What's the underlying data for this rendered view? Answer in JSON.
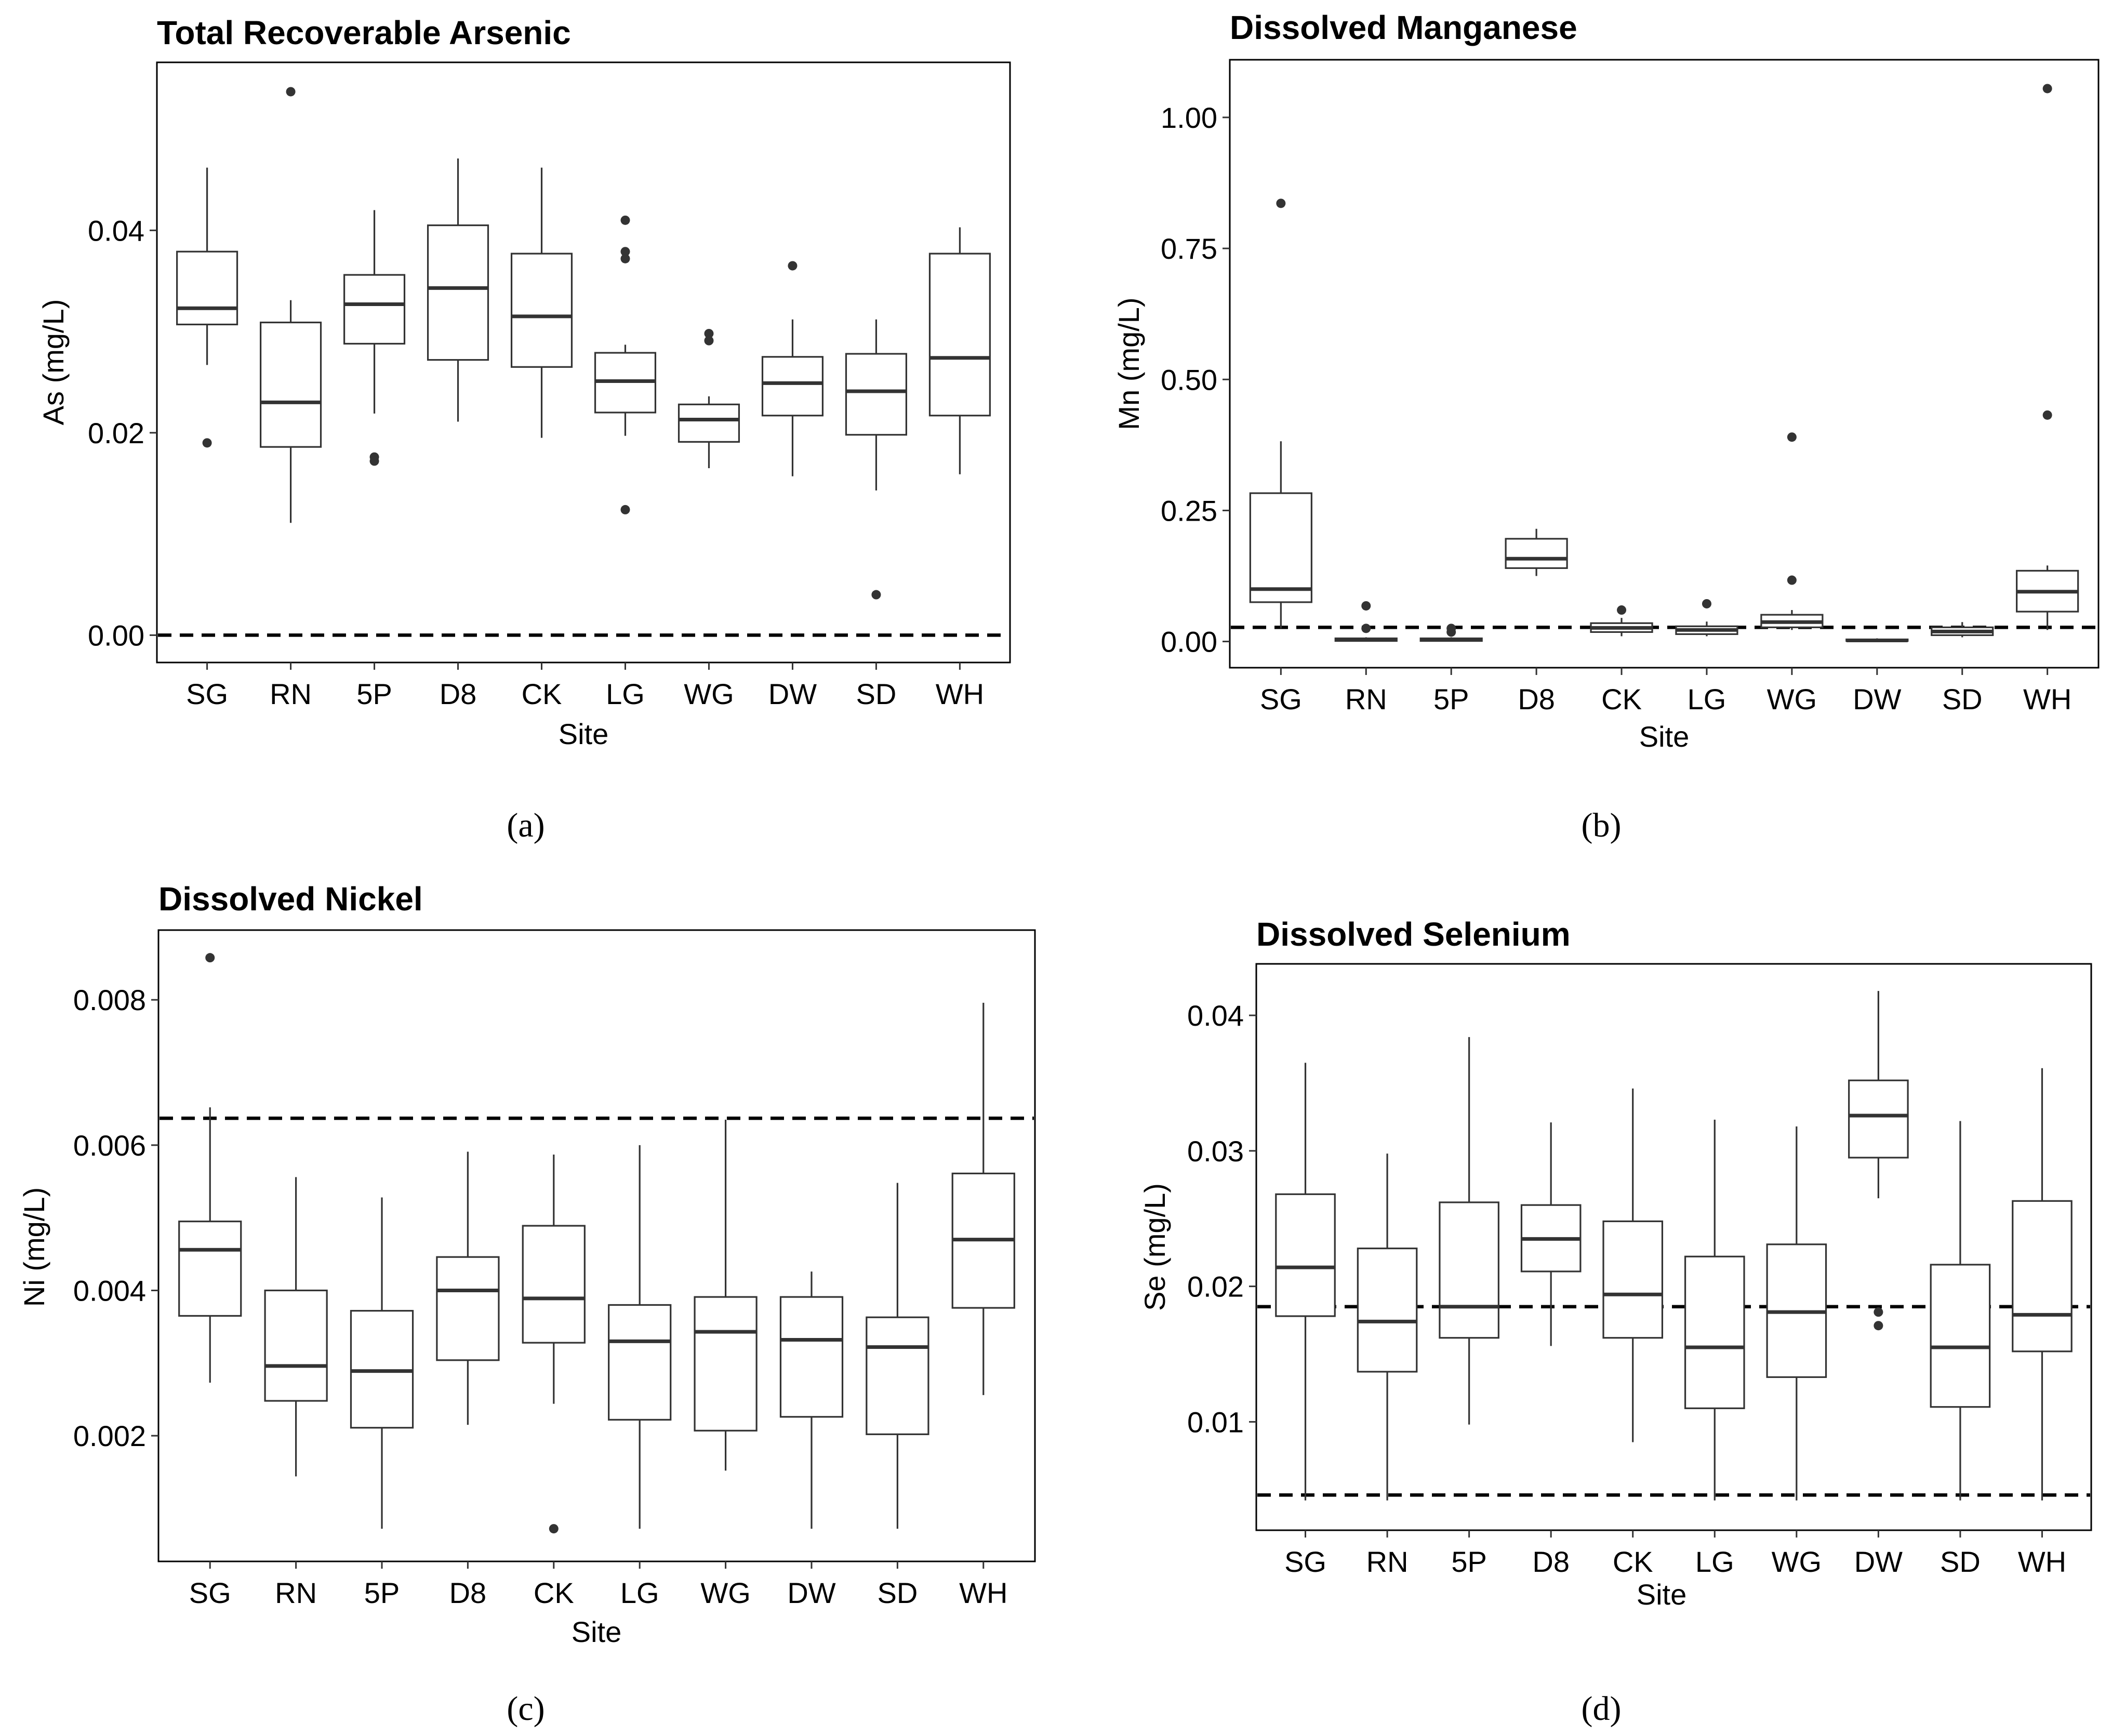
{
  "figure": {
    "captions": [
      "(a)",
      "(b)",
      "(c)",
      "(d)"
    ]
  },
  "chart_data": [
    {
      "type": "box",
      "title": "Total Recoverable Arsenic",
      "caption": "(a)",
      "xlabel": "Site",
      "ylabel": "As (mg/L)",
      "ylim": [
        -0.0027,
        0.0566
      ],
      "yticks": [
        0.0,
        0.02,
        0.04
      ],
      "ytick_labels": [
        "0.00",
        "0.02",
        "0.04"
      ],
      "categories": [
        "SG",
        "RN",
        "5P",
        "D8",
        "CK",
        "LG",
        "WG",
        "DW",
        "SD",
        "WH"
      ],
      "boxes": [
        {
          "site": "SG",
          "lower_whisker": 0.0267,
          "q1": 0.0307,
          "median": 0.0323,
          "q3": 0.0379,
          "upper_whisker": 0.0462,
          "outliers": [
            0.019
          ]
        },
        {
          "site": "RN",
          "lower_whisker": 0.0111,
          "q1": 0.0186,
          "median": 0.023,
          "q3": 0.0309,
          "upper_whisker": 0.0331,
          "outliers": [
            0.0537
          ]
        },
        {
          "site": "5P",
          "lower_whisker": 0.0219,
          "q1": 0.0288,
          "median": 0.0327,
          "q3": 0.0356,
          "upper_whisker": 0.042,
          "outliers": [
            0.0176,
            0.0172
          ]
        },
        {
          "site": "D8",
          "lower_whisker": 0.0211,
          "q1": 0.0272,
          "median": 0.0343,
          "q3": 0.0405,
          "upper_whisker": 0.0471,
          "outliers": []
        },
        {
          "site": "CK",
          "lower_whisker": 0.0195,
          "q1": 0.0265,
          "median": 0.0315,
          "q3": 0.0377,
          "upper_whisker": 0.0462,
          "outliers": []
        },
        {
          "site": "LG",
          "lower_whisker": 0.0197,
          "q1": 0.022,
          "median": 0.0251,
          "q3": 0.0279,
          "upper_whisker": 0.0287,
          "outliers": [
            0.041,
            0.0379,
            0.0372,
            0.0124
          ]
        },
        {
          "site": "WG",
          "lower_whisker": 0.0165,
          "q1": 0.0191,
          "median": 0.0213,
          "q3": 0.0228,
          "upper_whisker": 0.0236,
          "outliers": [
            0.0298,
            0.0291
          ]
        },
        {
          "site": "DW",
          "lower_whisker": 0.0157,
          "q1": 0.0217,
          "median": 0.0249,
          "q3": 0.0275,
          "upper_whisker": 0.0312,
          "outliers": [
            0.0365
          ]
        },
        {
          "site": "SD",
          "lower_whisker": 0.0143,
          "q1": 0.0198,
          "median": 0.0241,
          "q3": 0.0278,
          "upper_whisker": 0.0312,
          "outliers": [
            0.004
          ]
        },
        {
          "site": "WH",
          "lower_whisker": 0.0159,
          "q1": 0.0217,
          "median": 0.0274,
          "q3": 0.0377,
          "upper_whisker": 0.0403,
          "outliers": []
        }
      ],
      "reference_lines": [
        0.0
      ]
    },
    {
      "type": "box",
      "title": "Dissolved Manganese",
      "caption": "(b)",
      "xlabel": "Site",
      "ylabel": "Mn (mg/L)",
      "ylim": [
        -0.05,
        1.11
      ],
      "yticks": [
        0.0,
        0.25,
        0.5,
        0.75,
        1.0
      ],
      "ytick_labels": [
        "0.00",
        "0.25",
        "0.50",
        "0.75",
        "1.00"
      ],
      "categories": [
        "SG",
        "RN",
        "5P",
        "D8",
        "CK",
        "LG",
        "WG",
        "DW",
        "SD",
        "WH"
      ],
      "boxes": [
        {
          "site": "SG",
          "lower_whisker": 0.025,
          "q1": 0.075,
          "median": 0.1,
          "q3": 0.283,
          "upper_whisker": 0.382,
          "outliers": [
            0.836
          ]
        },
        {
          "site": "RN",
          "lower_whisker": 0.0,
          "q1": 0.001,
          "median": 0.003,
          "q3": 0.006,
          "upper_whisker": 0.008,
          "outliers": [
            0.068,
            0.025
          ]
        },
        {
          "site": "5P",
          "lower_whisker": 0.0,
          "q1": 0.001,
          "median": 0.003,
          "q3": 0.006,
          "upper_whisker": 0.008,
          "outliers": [
            0.025,
            0.018
          ]
        },
        {
          "site": "D8",
          "lower_whisker": 0.125,
          "q1": 0.14,
          "median": 0.158,
          "q3": 0.196,
          "upper_whisker": 0.215,
          "outliers": []
        },
        {
          "site": "CK",
          "lower_whisker": 0.01,
          "q1": 0.018,
          "median": 0.026,
          "q3": 0.035,
          "upper_whisker": 0.045,
          "outliers": [
            0.06
          ]
        },
        {
          "site": "LG",
          "lower_whisker": 0.01,
          "q1": 0.014,
          "median": 0.022,
          "q3": 0.029,
          "upper_whisker": 0.038,
          "outliers": [
            0.072
          ]
        },
        {
          "site": "WG",
          "lower_whisker": 0.022,
          "q1": 0.027,
          "median": 0.037,
          "q3": 0.051,
          "upper_whisker": 0.06,
          "outliers": [
            0.39,
            0.117
          ]
        },
        {
          "site": "DW",
          "lower_whisker": 0.0,
          "q1": 0.001,
          "median": 0.002,
          "q3": 0.004,
          "upper_whisker": 0.006,
          "outliers": []
        },
        {
          "site": "SD",
          "lower_whisker": 0.008,
          "q1": 0.012,
          "median": 0.019,
          "q3": 0.027,
          "upper_whisker": 0.037,
          "outliers": []
        },
        {
          "site": "WH",
          "lower_whisker": 0.022,
          "q1": 0.057,
          "median": 0.095,
          "q3": 0.135,
          "upper_whisker": 0.145,
          "outliers": [
            1.055,
            0.432
          ]
        }
      ],
      "reference_lines": [
        0.027
      ]
    },
    {
      "type": "box",
      "title": "Dissolved Nickel",
      "caption": "(c)",
      "xlabel": "Site",
      "ylabel": "Ni (mg/L)",
      "ylim": [
        0.00027,
        0.00896
      ],
      "yticks": [
        0.002,
        0.004,
        0.006,
        0.008
      ],
      "ytick_labels": [
        "0.002",
        "0.004",
        "0.006",
        "0.008"
      ],
      "categories": [
        "SG",
        "RN",
        "5P",
        "D8",
        "CK",
        "LG",
        "WG",
        "DW",
        "SD",
        "WH"
      ],
      "boxes": [
        {
          "site": "SG",
          "lower_whisker": 0.00273,
          "q1": 0.00365,
          "median": 0.00456,
          "q3": 0.00495,
          "upper_whisker": 0.00652,
          "outliers": [
            0.00858
          ]
        },
        {
          "site": "RN",
          "lower_whisker": 0.00144,
          "q1": 0.00248,
          "median": 0.00296,
          "q3": 0.004,
          "upper_whisker": 0.00556,
          "outliers": []
        },
        {
          "site": "5P",
          "lower_whisker": 0.00072,
          "q1": 0.00211,
          "median": 0.00289,
          "q3": 0.00372,
          "upper_whisker": 0.00528,
          "outliers": []
        },
        {
          "site": "D8",
          "lower_whisker": 0.00215,
          "q1": 0.00304,
          "median": 0.004,
          "q3": 0.00446,
          "upper_whisker": 0.00591,
          "outliers": []
        },
        {
          "site": "CK",
          "lower_whisker": 0.00244,
          "q1": 0.00328,
          "median": 0.00389,
          "q3": 0.00489,
          "upper_whisker": 0.00587,
          "outliers": [
            0.00072
          ]
        },
        {
          "site": "LG",
          "lower_whisker": 0.00072,
          "q1": 0.00222,
          "median": 0.0033,
          "q3": 0.0038,
          "upper_whisker": 0.006,
          "outliers": []
        },
        {
          "site": "WG",
          "lower_whisker": 0.00152,
          "q1": 0.00207,
          "median": 0.00343,
          "q3": 0.00391,
          "upper_whisker": 0.00635,
          "outliers": []
        },
        {
          "site": "DW",
          "lower_whisker": 0.00072,
          "q1": 0.00226,
          "median": 0.00332,
          "q3": 0.00391,
          "upper_whisker": 0.00426,
          "outliers": []
        },
        {
          "site": "SD",
          "lower_whisker": 0.00072,
          "q1": 0.00202,
          "median": 0.00322,
          "q3": 0.00363,
          "upper_whisker": 0.00548,
          "outliers": []
        },
        {
          "site": "WH",
          "lower_whisker": 0.00256,
          "q1": 0.00376,
          "median": 0.0047,
          "q3": 0.00561,
          "upper_whisker": 0.00796,
          "outliers": []
        }
      ],
      "reference_lines": [
        0.00637
      ]
    },
    {
      "type": "box",
      "title": "Dissolved Selenium",
      "caption": "(d)",
      "xlabel": "Site",
      "ylabel": "Se (mg/L)",
      "ylim": [
        0.002,
        0.0438
      ],
      "yticks": [
        0.01,
        0.02,
        0.03,
        0.04
      ],
      "ytick_labels": [
        "0.01",
        "0.02",
        "0.03",
        "0.04"
      ],
      "categories": [
        "SG",
        "RN",
        "5P",
        "D8",
        "CK",
        "LG",
        "WG",
        "DW",
        "SD",
        "WH"
      ],
      "boxes": [
        {
          "site": "SG",
          "lower_whisker": 0.0042,
          "q1": 0.0178,
          "median": 0.0214,
          "q3": 0.0268,
          "upper_whisker": 0.0365,
          "outliers": []
        },
        {
          "site": "RN",
          "lower_whisker": 0.0042,
          "q1": 0.0137,
          "median": 0.0174,
          "q3": 0.0228,
          "upper_whisker": 0.0298,
          "outliers": []
        },
        {
          "site": "5P",
          "lower_whisker": 0.0098,
          "q1": 0.0162,
          "median": 0.0185,
          "q3": 0.0262,
          "upper_whisker": 0.0384,
          "outliers": []
        },
        {
          "site": "D8",
          "lower_whisker": 0.0156,
          "q1": 0.0211,
          "median": 0.0235,
          "q3": 0.026,
          "upper_whisker": 0.0321,
          "outliers": []
        },
        {
          "site": "CK",
          "lower_whisker": 0.0085,
          "q1": 0.0162,
          "median": 0.0194,
          "q3": 0.0248,
          "upper_whisker": 0.0346,
          "outliers": []
        },
        {
          "site": "LG",
          "lower_whisker": 0.0042,
          "q1": 0.011,
          "median": 0.0155,
          "q3": 0.0222,
          "upper_whisker": 0.0323,
          "outliers": []
        },
        {
          "site": "WG",
          "lower_whisker": 0.0042,
          "q1": 0.0133,
          "median": 0.0181,
          "q3": 0.0231,
          "upper_whisker": 0.0318,
          "outliers": []
        },
        {
          "site": "DW",
          "lower_whisker": 0.0265,
          "q1": 0.0295,
          "median": 0.0326,
          "q3": 0.0352,
          "upper_whisker": 0.0418,
          "outliers": [
            0.0181,
            0.0171
          ]
        },
        {
          "site": "SD",
          "lower_whisker": 0.0042,
          "q1": 0.0111,
          "median": 0.0155,
          "q3": 0.0216,
          "upper_whisker": 0.0322,
          "outliers": []
        },
        {
          "site": "WH",
          "lower_whisker": 0.0042,
          "q1": 0.0152,
          "median": 0.0179,
          "q3": 0.0263,
          "upper_whisker": 0.0361,
          "outliers": []
        }
      ],
      "reference_lines": [
        0.0185,
        0.0046
      ]
    }
  ]
}
